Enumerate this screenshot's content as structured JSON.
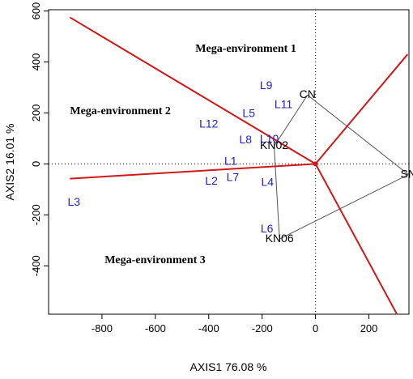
{
  "chart_data": {
    "type": "scatter",
    "title": "",
    "xlabel": "AXIS1 76.08 %",
    "ylabel": "AXIS2 16.01 %",
    "xlim": [
      -1000,
      350
    ],
    "ylim": [
      -590,
      605
    ],
    "xticks": [
      -800,
      -600,
      -400,
      -200,
      0,
      200
    ],
    "yticks": [
      -400,
      -200,
      0,
      200,
      400,
      600
    ],
    "grid": false,
    "colors": {
      "genotype": "#1f1fc8",
      "environment": "#000000",
      "sector_line": "#d01818",
      "polygon": "#555555"
    },
    "genotypes": [
      {
        "label": "L1",
        "x": -318,
        "y": 8
      },
      {
        "label": "L2",
        "x": -390,
        "y": -70
      },
      {
        "label": "L3",
        "x": -905,
        "y": -152
      },
      {
        "label": "L4",
        "x": -180,
        "y": -75
      },
      {
        "label": "L5",
        "x": -250,
        "y": 195
      },
      {
        "label": "L6",
        "x": -182,
        "y": -258
      },
      {
        "label": "L7",
        "x": -310,
        "y": -55
      },
      {
        "label": "L8",
        "x": -262,
        "y": 92
      },
      {
        "label": "L9",
        "x": -185,
        "y": 305
      },
      {
        "label": "L10",
        "x": -173,
        "y": 95
      },
      {
        "label": "L11",
        "x": -120,
        "y": 230
      },
      {
        "label": "L12",
        "x": -400,
        "y": 155
      }
    ],
    "environments": [
      {
        "label": "CN",
        "x": -30,
        "y": 270
      },
      {
        "label": "SN",
        "x": 348,
        "y": -42
      },
      {
        "label": "KN06",
        "x": -135,
        "y": -295
      },
      {
        "label": "KN02",
        "x": -155,
        "y": 70
      }
    ],
    "polygon": [
      {
        "x": -30,
        "y": 270
      },
      {
        "x": 348,
        "y": -42
      },
      {
        "x": -135,
        "y": -295
      },
      {
        "x": -155,
        "y": 70
      }
    ],
    "sector_lines": [
      {
        "x": -920,
        "y": 575
      },
      {
        "x": 345,
        "y": 430
      },
      {
        "x": 305,
        "y": -590
      },
      {
        "x": -920,
        "y": -58
      }
    ],
    "annotations": [
      {
        "text": "Mega-environment 1",
        "x": -450,
        "y": 450
      },
      {
        "text": "Mega-environment 2",
        "x": -920,
        "y": 205
      },
      {
        "text": "Mega-environment 3",
        "x": -790,
        "y": -380
      }
    ]
  }
}
